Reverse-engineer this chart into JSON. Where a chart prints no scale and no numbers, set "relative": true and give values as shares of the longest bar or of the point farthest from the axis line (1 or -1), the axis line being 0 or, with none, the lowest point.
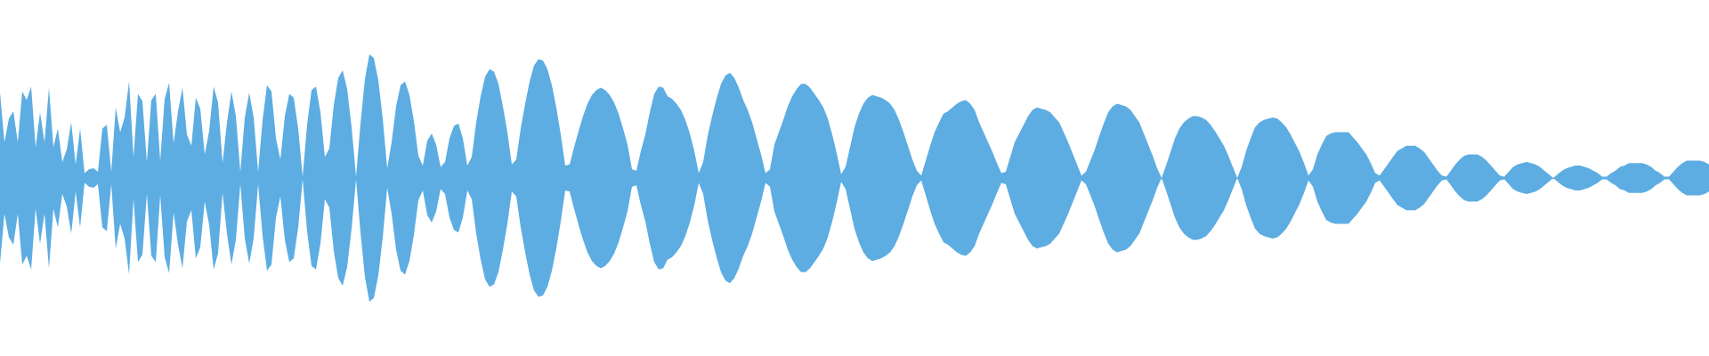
{
  "chart_data": {
    "type": "area",
    "relative": true,
    "tick_labels": false,
    "categories": [
      null,
      null,
      null,
      null,
      null,
      null,
      null,
      null,
      null,
      null,
      null,
      null,
      null,
      null,
      null,
      null,
      null,
      null,
      null,
      null,
      null,
      null,
      null,
      null,
      null,
      null,
      null,
      null,
      null,
      null,
      null,
      null,
      null,
      null,
      null,
      null,
      null,
      null,
      null,
      null,
      null,
      null,
      null,
      null,
      null,
      null,
      null,
      null,
      null,
      null,
      null,
      null,
      null,
      null,
      null,
      null,
      null,
      null,
      null,
      null,
      null,
      null,
      null,
      null,
      null,
      null,
      null,
      null,
      null,
      null,
      null,
      null,
      null,
      null,
      null,
      null,
      null,
      null,
      null,
      null,
      null,
      null,
      null,
      null,
      null,
      null,
      null,
      null,
      null,
      null,
      null,
      null,
      null,
      null,
      null,
      null,
      null,
      null,
      null,
      null,
      null,
      null,
      null,
      null,
      null,
      null,
      null,
      null,
      null,
      null,
      null,
      null,
      null,
      null,
      null,
      null,
      null,
      null,
      null,
      null,
      null,
      null,
      null,
      null,
      null,
      null,
      null,
      null,
      null,
      null,
      null,
      null,
      null,
      null,
      null,
      null,
      null,
      null,
      null,
      null,
      null,
      null,
      null,
      null,
      null,
      null,
      null,
      null,
      null,
      null,
      null,
      null,
      null,
      null,
      null,
      null,
      null,
      null,
      null,
      null,
      null,
      null,
      null,
      null,
      null,
      null,
      null,
      null,
      null,
      null,
      null,
      null,
      null,
      null,
      null,
      null,
      null,
      null,
      null,
      null,
      null,
      null,
      null,
      null,
      null,
      null,
      null,
      null,
      null,
      null,
      null,
      null,
      null,
      null,
      null,
      null,
      null,
      null,
      null,
      null,
      null,
      null,
      null,
      null,
      null,
      null,
      null,
      null,
      null,
      null,
      null,
      null,
      null,
      null,
      null,
      null,
      null,
      null,
      null,
      null,
      null,
      null,
      null,
      null,
      null,
      null,
      null,
      null,
      null,
      null,
      null,
      null,
      null,
      null,
      null,
      null,
      null,
      null,
      null,
      null,
      null,
      null,
      null,
      null,
      null,
      null,
      null,
      null,
      null,
      null,
      null,
      null,
      null,
      null,
      null,
      null,
      null,
      null,
      null,
      null,
      null,
      null,
      null,
      null,
      null,
      null,
      null,
      null,
      null,
      null,
      null,
      null,
      null,
      null,
      null,
      null,
      null,
      null,
      null,
      null,
      null,
      null,
      null,
      null,
      null,
      null,
      null,
      null,
      null,
      null,
      null,
      null,
      null,
      null,
      null,
      null,
      null,
      null,
      null,
      null,
      null,
      null,
      null,
      null,
      null,
      null,
      null,
      null,
      null,
      null,
      null,
      null,
      null,
      null,
      null,
      null,
      null,
      null,
      null,
      null,
      null,
      null,
      null,
      null,
      null,
      null,
      null,
      null,
      null,
      null,
      null,
      null,
      null,
      null,
      null,
      null,
      null,
      null,
      null,
      null,
      null,
      null,
      null,
      null,
      null,
      null,
      null,
      null,
      null,
      null,
      null,
      null,
      null,
      null,
      null,
      null,
      null,
      null,
      null,
      null,
      null,
      null,
      null,
      null,
      null,
      null,
      null,
      null,
      null,
      null,
      null,
      null,
      null,
      null,
      null,
      null,
      null,
      null,
      null,
      null,
      null,
      null,
      null,
      null,
      null
    ],
    "series": [
      {
        "color": "#5dade2",
        "values": [
          0.69,
          0.29,
          0.48,
          0.54,
          0.29,
          0.7,
          0.63,
          0.74,
          0.25,
          0.53,
          0.29,
          0.73,
          0.25,
          0.4,
          0.13,
          0.23,
          0.45,
          0.11,
          0.4,
          0.04,
          0.07,
          0.08,
          0.05,
          0.4,
          0.43,
          0.05,
          0.57,
          0.37,
          0.49,
          0.78,
          0.17,
          0.68,
          0.62,
          0.13,
          0.63,
          0.68,
          0.14,
          0.64,
          0.77,
          0.28,
          0.54,
          0.73,
          0.35,
          0.26,
          0.65,
          0.56,
          0.19,
          0.38,
          0.74,
          0.61,
          0.12,
          0.45,
          0.7,
          0.5,
          0.05,
          0.49,
          0.69,
          0.49,
          0.05,
          0.47,
          0.75,
          0.7,
          0.32,
          0.15,
          0.5,
          0.68,
          0.65,
          0.4,
          0.01,
          0.43,
          0.71,
          0.74,
          0.53,
          0.17,
          0.24,
          0.59,
          0.81,
          0.87,
          0.72,
          0.41,
          0.01,
          0.44,
          0.8,
          1,
          0.97,
          0.79,
          0.48,
          0.08,
          0.29,
          0.58,
          0.75,
          0.78,
          0.67,
          0.46,
          0.18,
          0.1,
          0.3,
          0.36,
          0.27,
          0.09,
          0.13,
          0.32,
          0.42,
          0.44,
          0.32,
          0.1,
          0.17,
          0.45,
          0.66,
          0.82,
          0.88,
          0.86,
          0.76,
          0.58,
          0.37,
          0.11,
          0.15,
          0.4,
          0.6,
          0.78,
          0.91,
          0.96,
          0.95,
          0.88,
          0.75,
          0.57,
          0.35,
          0.1,
          0.11,
          0.25,
          0.38,
          0.5,
          0.6,
          0.67,
          0.71,
          0.73,
          0.71,
          0.67,
          0.61,
          0.52,
          0.4,
          0.27,
          0.07,
          0.06,
          0.22,
          0.35,
          0.53,
          0.68,
          0.74,
          0.73,
          0.66,
          0.64,
          0.6,
          0.55,
          0.47,
          0.36,
          0.22,
          0.04,
          0.13,
          0.34,
          0.5,
          0.64,
          0.76,
          0.83,
          0.85,
          0.81,
          0.73,
          0.63,
          0.55,
          0.45,
          0.32,
          0.19,
          0.04,
          0.07,
          0.27,
          0.37,
          0.47,
          0.58,
          0.66,
          0.72,
          0.76,
          0.76,
          0.73,
          0.68,
          0.63,
          0.57,
          0.48,
          0.35,
          0.2,
          0.03,
          0.09,
          0.25,
          0.41,
          0.52,
          0.6,
          0.65,
          0.67,
          0.66,
          0.65,
          0.63,
          0.6,
          0.55,
          0.47,
          0.37,
          0.26,
          0.15,
          0.06,
          0.02,
          0.14,
          0.26,
          0.37,
          0.45,
          0.52,
          0.54,
          0.57,
          0.6,
          0.62,
          0.63,
          0.6,
          0.55,
          0.45,
          0.37,
          0.29,
          0.21,
          0.12,
          0.04,
          0.05,
          0.17,
          0.29,
          0.36,
          0.43,
          0.5,
          0.55,
          0.57,
          0.56,
          0.55,
          0.53,
          0.49,
          0.45,
          0.37,
          0.29,
          0.2,
          0.11,
          0.02,
          0.05,
          0.14,
          0.23,
          0.34,
          0.44,
          0.53,
          0.58,
          0.6,
          0.59,
          0.58,
          0.55,
          0.5,
          0.45,
          0.36,
          0.27,
          0.18,
          0.08,
          0,
          0.1,
          0.21,
          0.32,
          0.4,
          0.45,
          0.48,
          0.5,
          0.5,
          0.49,
          0.47,
          0.43,
          0.38,
          0.32,
          0.26,
          0.18,
          0.09,
          0,
          0.09,
          0.22,
          0.32,
          0.41,
          0.45,
          0.47,
          0.48,
          0.49,
          0.48,
          0.45,
          0.41,
          0.35,
          0.28,
          0.21,
          0.12,
          0.02,
          0.07,
          0.19,
          0.27,
          0.34,
          0.36,
          0.37,
          0.37,
          0.37,
          0.37,
          0.33,
          0.29,
          0.24,
          0.19,
          0.12,
          0.04,
          0.02,
          0.07,
          0.12,
          0.17,
          0.22,
          0.24,
          0.26,
          0.26,
          0.26,
          0.24,
          0.21,
          0.16,
          0.11,
          0.06,
          0.02,
          0.01,
          0.06,
          0.11,
          0.15,
          0.18,
          0.19,
          0.19,
          0.19,
          0.17,
          0.14,
          0.1,
          0.06,
          0.02,
          0.01,
          0.05,
          0.09,
          0.11,
          0.12,
          0.13,
          0.12,
          0.11,
          0.09,
          0.06,
          0.03,
          0,
          0.03,
          0.06,
          0.08,
          0.09,
          0.1,
          0.1,
          0.09,
          0.08,
          0.06,
          0.04,
          0.01,
          0.01,
          0.04,
          0.06,
          0.09,
          0.1,
          0.12,
          0.12,
          0.12,
          0.12,
          0.11,
          0.09,
          0.06,
          0.04,
          0.01,
          0.01,
          0.05,
          0.09,
          0.12,
          0.14,
          0.14,
          0.14,
          0.14,
          0.13,
          0.11
        ]
      },
      {
        "color": "#5dade2",
        "values": [
          -0.69,
          -0.29,
          -0.48,
          -0.54,
          -0.29,
          -0.7,
          -0.63,
          -0.74,
          -0.25,
          -0.53,
          -0.29,
          -0.73,
          -0.25,
          -0.4,
          -0.13,
          -0.23,
          -0.45,
          -0.11,
          -0.4,
          -0.04,
          -0.07,
          -0.08,
          -0.05,
          -0.4,
          -0.43,
          -0.05,
          -0.57,
          -0.37,
          -0.49,
          -0.78,
          -0.17,
          -0.68,
          -0.62,
          -0.13,
          -0.63,
          -0.68,
          -0.14,
          -0.64,
          -0.77,
          -0.28,
          -0.54,
          -0.73,
          -0.35,
          -0.26,
          -0.65,
          -0.56,
          -0.19,
          -0.38,
          -0.74,
          -0.61,
          -0.12,
          -0.45,
          -0.7,
          -0.5,
          -0.05,
          -0.49,
          -0.69,
          -0.49,
          -0.05,
          -0.47,
          -0.75,
          -0.7,
          -0.32,
          -0.15,
          -0.5,
          -0.68,
          -0.65,
          -0.4,
          -0.01,
          -0.43,
          -0.71,
          -0.74,
          -0.53,
          -0.17,
          -0.24,
          -0.59,
          -0.81,
          -0.87,
          -0.72,
          -0.41,
          -0.01,
          -0.44,
          -0.8,
          -1,
          -0.97,
          -0.79,
          -0.48,
          -0.08,
          -0.29,
          -0.58,
          -0.75,
          -0.78,
          -0.67,
          -0.46,
          -0.18,
          -0.1,
          -0.3,
          -0.36,
          -0.27,
          -0.09,
          -0.13,
          -0.32,
          -0.42,
          -0.44,
          -0.32,
          -0.1,
          -0.17,
          -0.45,
          -0.66,
          -0.82,
          -0.88,
          -0.86,
          -0.76,
          -0.58,
          -0.37,
          -0.11,
          -0.15,
          -0.4,
          -0.6,
          -0.78,
          -0.91,
          -0.96,
          -0.95,
          -0.88,
          -0.75,
          -0.57,
          -0.35,
          -0.1,
          -0.11,
          -0.25,
          -0.38,
          -0.5,
          -0.6,
          -0.67,
          -0.71,
          -0.73,
          -0.71,
          -0.67,
          -0.61,
          -0.52,
          -0.4,
          -0.27,
          -0.07,
          -0.06,
          -0.22,
          -0.35,
          -0.53,
          -0.68,
          -0.74,
          -0.73,
          -0.66,
          -0.64,
          -0.6,
          -0.55,
          -0.47,
          -0.36,
          -0.22,
          -0.04,
          -0.13,
          -0.34,
          -0.5,
          -0.64,
          -0.76,
          -0.83,
          -0.85,
          -0.81,
          -0.73,
          -0.63,
          -0.55,
          -0.45,
          -0.32,
          -0.19,
          -0.04,
          -0.07,
          -0.27,
          -0.37,
          -0.47,
          -0.58,
          -0.66,
          -0.72,
          -0.76,
          -0.76,
          -0.73,
          -0.68,
          -0.63,
          -0.57,
          -0.48,
          -0.35,
          -0.2,
          -0.03,
          -0.09,
          -0.25,
          -0.41,
          -0.52,
          -0.6,
          -0.65,
          -0.67,
          -0.66,
          -0.65,
          -0.63,
          -0.6,
          -0.55,
          -0.47,
          -0.37,
          -0.26,
          -0.15,
          -0.06,
          -0.02,
          -0.14,
          -0.26,
          -0.37,
          -0.45,
          -0.52,
          -0.54,
          -0.57,
          -0.6,
          -0.62,
          -0.63,
          -0.6,
          -0.55,
          -0.45,
          -0.37,
          -0.29,
          -0.21,
          -0.12,
          -0.04,
          -0.05,
          -0.17,
          -0.29,
          -0.36,
          -0.43,
          -0.5,
          -0.55,
          -0.57,
          -0.56,
          -0.55,
          -0.53,
          -0.49,
          -0.45,
          -0.37,
          -0.29,
          -0.2,
          -0.11,
          -0.02,
          -0.05,
          -0.14,
          -0.23,
          -0.34,
          -0.44,
          -0.53,
          -0.58,
          -0.6,
          -0.59,
          -0.58,
          -0.55,
          -0.5,
          -0.45,
          -0.36,
          -0.27,
          -0.18,
          -0.08,
          0,
          -0.1,
          -0.21,
          -0.32,
          -0.4,
          -0.45,
          -0.48,
          -0.5,
          -0.5,
          -0.49,
          -0.47,
          -0.43,
          -0.38,
          -0.32,
          -0.26,
          -0.18,
          -0.09,
          0,
          -0.09,
          -0.22,
          -0.32,
          -0.41,
          -0.45,
          -0.47,
          -0.48,
          -0.49,
          -0.48,
          -0.45,
          -0.41,
          -0.35,
          -0.28,
          -0.21,
          -0.12,
          -0.02,
          -0.07,
          -0.19,
          -0.27,
          -0.34,
          -0.36,
          -0.37,
          -0.37,
          -0.37,
          -0.37,
          -0.33,
          -0.29,
          -0.24,
          -0.19,
          -0.12,
          -0.04,
          -0.02,
          -0.07,
          -0.12,
          -0.17,
          -0.22,
          -0.24,
          -0.26,
          -0.26,
          -0.26,
          -0.24,
          -0.21,
          -0.16,
          -0.11,
          -0.06,
          -0.02,
          -0.01,
          -0.06,
          -0.11,
          -0.15,
          -0.18,
          -0.19,
          -0.19,
          -0.19,
          -0.17,
          -0.14,
          -0.1,
          -0.06,
          -0.02,
          -0.01,
          -0.05,
          -0.09,
          -0.11,
          -0.12,
          -0.13,
          -0.12,
          -0.11,
          -0.09,
          -0.06,
          -0.03,
          0,
          -0.03,
          -0.06,
          -0.08,
          -0.09,
          -0.1,
          -0.1,
          -0.09,
          -0.08,
          -0.06,
          -0.04,
          -0.01,
          -0.01,
          -0.04,
          -0.06,
          -0.09,
          -0.1,
          -0.12,
          -0.12,
          -0.12,
          -0.12,
          -0.11,
          -0.09,
          -0.06,
          -0.04,
          -0.01,
          -0.01,
          -0.05,
          -0.09,
          -0.12,
          -0.14,
          -0.14,
          -0.14,
          -0.14,
          -0.13,
          -0.11
        ]
      }
    ]
  }
}
